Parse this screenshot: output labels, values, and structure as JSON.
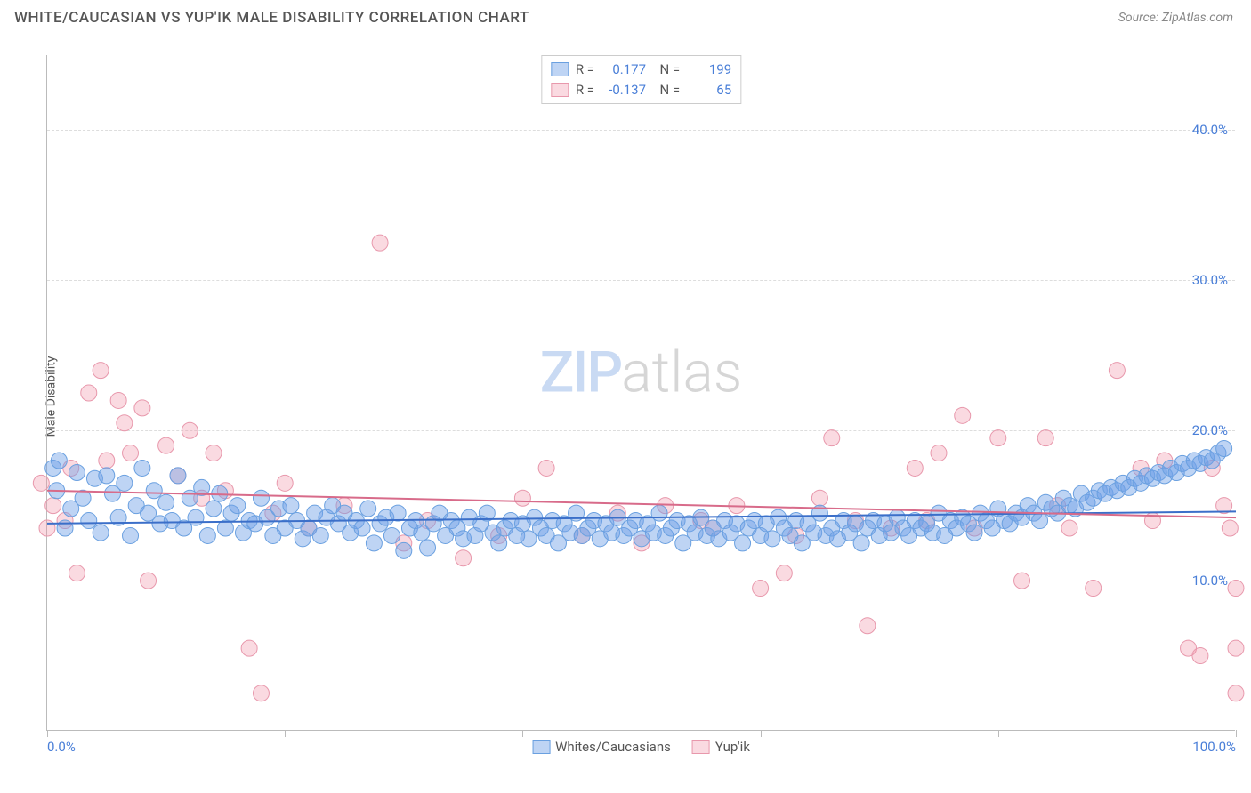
{
  "header": {
    "title": "WHITE/CAUCASIAN VS YUP'IK MALE DISABILITY CORRELATION CHART",
    "source": "Source: ZipAtlas.com"
  },
  "chart": {
    "type": "scatter",
    "ylabel": "Male Disability",
    "xlim": [
      0,
      100
    ],
    "ylim": [
      0,
      45
    ],
    "xtick_positions": [
      0,
      20,
      40,
      60,
      80,
      100
    ],
    "xtick_labels": [
      "0.0%",
      "",
      "",
      "",
      "",
      "100.0%"
    ],
    "ytick_positions": [
      10,
      20,
      30,
      40
    ],
    "ytick_labels": [
      "10.0%",
      "20.0%",
      "30.0%",
      "40.0%"
    ],
    "grid_color": "#dddddd",
    "background_color": "#ffffff",
    "axis_color": "#bbbbbb",
    "label_color": "#555555",
    "tick_label_color": "#4a7fd8",
    "watermark": {
      "zip": "ZIP",
      "atlas": "atlas"
    },
    "series": [
      {
        "name": "Whites/Caucasians",
        "fill": "rgba(110,160,230,0.45)",
        "stroke": "#6aa0e0",
        "r_value": "0.177",
        "n_value": "199",
        "trend": {
          "y1": 13.8,
          "y2": 14.6,
          "color": "#3b6fc9",
          "width": 2
        },
        "marker_r": 9,
        "points": [
          [
            0.5,
            17.5
          ],
          [
            0.8,
            16.0
          ],
          [
            1.0,
            18.0
          ],
          [
            1.5,
            13.5
          ],
          [
            2.0,
            14.8
          ],
          [
            2.5,
            17.2
          ],
          [
            3.0,
            15.5
          ],
          [
            3.5,
            14.0
          ],
          [
            4.0,
            16.8
          ],
          [
            4.5,
            13.2
          ],
          [
            5.0,
            17.0
          ],
          [
            5.5,
            15.8
          ],
          [
            6.0,
            14.2
          ],
          [
            6.5,
            16.5
          ],
          [
            7.0,
            13.0
          ],
          [
            7.5,
            15.0
          ],
          [
            8.0,
            17.5
          ],
          [
            8.5,
            14.5
          ],
          [
            9.0,
            16.0
          ],
          [
            9.5,
            13.8
          ],
          [
            10,
            15.2
          ],
          [
            10.5,
            14.0
          ],
          [
            11,
            17.0
          ],
          [
            11.5,
            13.5
          ],
          [
            12,
            15.5
          ],
          [
            12.5,
            14.2
          ],
          [
            13,
            16.2
          ],
          [
            13.5,
            13.0
          ],
          [
            14,
            14.8
          ],
          [
            14.5,
            15.8
          ],
          [
            15,
            13.5
          ],
          [
            15.5,
            14.5
          ],
          [
            16,
            15.0
          ],
          [
            16.5,
            13.2
          ],
          [
            17,
            14.0
          ],
          [
            17.5,
            13.8
          ],
          [
            18,
            15.5
          ],
          [
            18.5,
            14.2
          ],
          [
            19,
            13.0
          ],
          [
            19.5,
            14.8
          ],
          [
            20,
            13.5
          ],
          [
            20.5,
            15.0
          ],
          [
            21,
            14.0
          ],
          [
            21.5,
            12.8
          ],
          [
            22,
            13.5
          ],
          [
            22.5,
            14.5
          ],
          [
            23,
            13.0
          ],
          [
            23.5,
            14.2
          ],
          [
            24,
            15.0
          ],
          [
            24.5,
            13.8
          ],
          [
            25,
            14.5
          ],
          [
            25.5,
            13.2
          ],
          [
            26,
            14.0
          ],
          [
            26.5,
            13.5
          ],
          [
            27,
            14.8
          ],
          [
            27.5,
            12.5
          ],
          [
            28,
            13.8
          ],
          [
            28.5,
            14.2
          ],
          [
            29,
            13.0
          ],
          [
            29.5,
            14.5
          ],
          [
            30,
            12.0
          ],
          [
            30.5,
            13.5
          ],
          [
            31,
            14.0
          ],
          [
            31.5,
            13.2
          ],
          [
            32,
            12.2
          ],
          [
            32.5,
            13.8
          ],
          [
            33,
            14.5
          ],
          [
            33.5,
            13.0
          ],
          [
            34,
            14.0
          ],
          [
            34.5,
            13.5
          ],
          [
            35,
            12.8
          ],
          [
            35.5,
            14.2
          ],
          [
            36,
            13.0
          ],
          [
            36.5,
            13.8
          ],
          [
            37,
            14.5
          ],
          [
            37.5,
            13.2
          ],
          [
            38,
            12.5
          ],
          [
            38.5,
            13.5
          ],
          [
            39,
            14.0
          ],
          [
            39.5,
            13.0
          ],
          [
            40,
            13.8
          ],
          [
            40.5,
            12.8
          ],
          [
            41,
            14.2
          ],
          [
            41.5,
            13.5
          ],
          [
            42,
            13.0
          ],
          [
            42.5,
            14.0
          ],
          [
            43,
            12.5
          ],
          [
            43.5,
            13.8
          ],
          [
            44,
            13.2
          ],
          [
            44.5,
            14.5
          ],
          [
            45,
            13.0
          ],
          [
            45.5,
            13.5
          ],
          [
            46,
            14.0
          ],
          [
            46.5,
            12.8
          ],
          [
            47,
            13.8
          ],
          [
            47.5,
            13.2
          ],
          [
            48,
            14.2
          ],
          [
            48.5,
            13.0
          ],
          [
            49,
            13.5
          ],
          [
            49.5,
            14.0
          ],
          [
            50,
            12.8
          ],
          [
            50.5,
            13.8
          ],
          [
            51,
            13.2
          ],
          [
            51.5,
            14.5
          ],
          [
            52,
            13.0
          ],
          [
            52.5,
            13.5
          ],
          [
            53,
            14.0
          ],
          [
            53.5,
            12.5
          ],
          [
            54,
            13.8
          ],
          [
            54.5,
            13.2
          ],
          [
            55,
            14.2
          ],
          [
            55.5,
            13.0
          ],
          [
            56,
            13.5
          ],
          [
            56.5,
            12.8
          ],
          [
            57,
            14.0
          ],
          [
            57.5,
            13.2
          ],
          [
            58,
            13.8
          ],
          [
            58.5,
            12.5
          ],
          [
            59,
            13.5
          ],
          [
            59.5,
            14.0
          ],
          [
            60,
            13.0
          ],
          [
            60.5,
            13.8
          ],
          [
            61,
            12.8
          ],
          [
            61.5,
            14.2
          ],
          [
            62,
            13.5
          ],
          [
            62.5,
            13.0
          ],
          [
            63,
            14.0
          ],
          [
            63.5,
            12.5
          ],
          [
            64,
            13.8
          ],
          [
            64.5,
            13.2
          ],
          [
            65,
            14.5
          ],
          [
            65.5,
            13.0
          ],
          [
            66,
            13.5
          ],
          [
            66.5,
            12.8
          ],
          [
            67,
            14.0
          ],
          [
            67.5,
            13.2
          ],
          [
            68,
            13.8
          ],
          [
            68.5,
            12.5
          ],
          [
            69,
            13.5
          ],
          [
            69.5,
            14.0
          ],
          [
            70,
            13.0
          ],
          [
            70.5,
            13.8
          ],
          [
            71,
            13.2
          ],
          [
            71.5,
            14.2
          ],
          [
            72,
            13.5
          ],
          [
            72.5,
            13.0
          ],
          [
            73,
            14.0
          ],
          [
            73.5,
            13.5
          ],
          [
            74,
            13.8
          ],
          [
            74.5,
            13.2
          ],
          [
            75,
            14.5
          ],
          [
            75.5,
            13.0
          ],
          [
            76,
            14.0
          ],
          [
            76.5,
            13.5
          ],
          [
            77,
            14.2
          ],
          [
            77.5,
            13.8
          ],
          [
            78,
            13.2
          ],
          [
            78.5,
            14.5
          ],
          [
            79,
            14.0
          ],
          [
            79.5,
            13.5
          ],
          [
            80,
            14.8
          ],
          [
            80.5,
            14.0
          ],
          [
            81,
            13.8
          ],
          [
            81.5,
            14.5
          ],
          [
            82,
            14.2
          ],
          [
            82.5,
            15.0
          ],
          [
            83,
            14.5
          ],
          [
            83.5,
            14.0
          ],
          [
            84,
            15.2
          ],
          [
            84.5,
            14.8
          ],
          [
            85,
            14.5
          ],
          [
            85.5,
            15.5
          ],
          [
            86,
            15.0
          ],
          [
            86.5,
            14.8
          ],
          [
            87,
            15.8
          ],
          [
            87.5,
            15.2
          ],
          [
            88,
            15.5
          ],
          [
            88.5,
            16.0
          ],
          [
            89,
            15.8
          ],
          [
            89.5,
            16.2
          ],
          [
            90,
            16.0
          ],
          [
            90.5,
            16.5
          ],
          [
            91,
            16.2
          ],
          [
            91.5,
            16.8
          ],
          [
            92,
            16.5
          ],
          [
            92.5,
            17.0
          ],
          [
            93,
            16.8
          ],
          [
            93.5,
            17.2
          ],
          [
            94,
            17.0
          ],
          [
            94.5,
            17.5
          ],
          [
            95,
            17.2
          ],
          [
            95.5,
            17.8
          ],
          [
            96,
            17.5
          ],
          [
            96.5,
            18.0
          ],
          [
            97,
            17.8
          ],
          [
            97.5,
            18.2
          ],
          [
            98,
            18.0
          ],
          [
            98.5,
            18.5
          ],
          [
            99,
            18.8
          ]
        ]
      },
      {
        "name": "Yup'ik",
        "fill": "rgba(240,150,170,0.35)",
        "stroke": "#e898ac",
        "r_value": "-0.137",
        "n_value": "65",
        "trend": {
          "y1": 16.0,
          "y2": 14.2,
          "color": "#d86b8a",
          "width": 2
        },
        "marker_r": 9,
        "points": [
          [
            -0.5,
            16.5
          ],
          [
            0,
            13.5
          ],
          [
            0.5,
            15.0
          ],
          [
            1.5,
            14.0
          ],
          [
            2.0,
            17.5
          ],
          [
            2.5,
            10.5
          ],
          [
            3.5,
            22.5
          ],
          [
            4.5,
            24.0
          ],
          [
            5.0,
            18.0
          ],
          [
            6.0,
            22.0
          ],
          [
            6.5,
            20.5
          ],
          [
            7.0,
            18.5
          ],
          [
            8.0,
            21.5
          ],
          [
            8.5,
            10.0
          ],
          [
            10,
            19.0
          ],
          [
            11,
            17.0
          ],
          [
            12,
            20.0
          ],
          [
            13,
            15.5
          ],
          [
            14,
            18.5
          ],
          [
            15,
            16.0
          ],
          [
            17,
            5.5
          ],
          [
            18,
            2.5
          ],
          [
            19,
            14.5
          ],
          [
            20,
            16.5
          ],
          [
            22,
            13.5
          ],
          [
            25,
            15.0
          ],
          [
            28,
            32.5
          ],
          [
            30,
            12.5
          ],
          [
            32,
            14.0
          ],
          [
            35,
            11.5
          ],
          [
            38,
            13.0
          ],
          [
            40,
            15.5
          ],
          [
            42,
            17.5
          ],
          [
            45,
            13.0
          ],
          [
            48,
            14.5
          ],
          [
            50,
            12.5
          ],
          [
            52,
            15.0
          ],
          [
            55,
            14.0
          ],
          [
            56,
            13.5
          ],
          [
            58,
            15.0
          ],
          [
            60,
            9.5
          ],
          [
            62,
            10.5
          ],
          [
            63,
            13.0
          ],
          [
            65,
            15.5
          ],
          [
            66,
            19.5
          ],
          [
            68,
            14.0
          ],
          [
            69,
            7.0
          ],
          [
            71,
            13.5
          ],
          [
            73,
            17.5
          ],
          [
            74,
            14.0
          ],
          [
            75,
            18.5
          ],
          [
            77,
            21.0
          ],
          [
            78,
            13.5
          ],
          [
            80,
            19.5
          ],
          [
            82,
            10.0
          ],
          [
            84,
            19.5
          ],
          [
            85,
            15.0
          ],
          [
            86,
            13.5
          ],
          [
            88,
            9.5
          ],
          [
            90,
            24.0
          ],
          [
            92,
            17.5
          ],
          [
            93,
            14.0
          ],
          [
            94,
            18.0
          ],
          [
            96,
            5.5
          ],
          [
            97,
            5.0
          ],
          [
            98,
            17.5
          ],
          [
            99,
            15.0
          ],
          [
            99.5,
            13.5
          ],
          [
            100,
            9.5
          ],
          [
            100,
            5.5
          ],
          [
            100,
            2.5
          ]
        ]
      }
    ],
    "legend_bottom": [
      {
        "label": "Whites/Caucasians",
        "fill": "rgba(110,160,230,0.45)",
        "stroke": "#6aa0e0"
      },
      {
        "label": "Yup'ik",
        "fill": "rgba(240,150,170,0.35)",
        "stroke": "#e898ac"
      }
    ]
  }
}
